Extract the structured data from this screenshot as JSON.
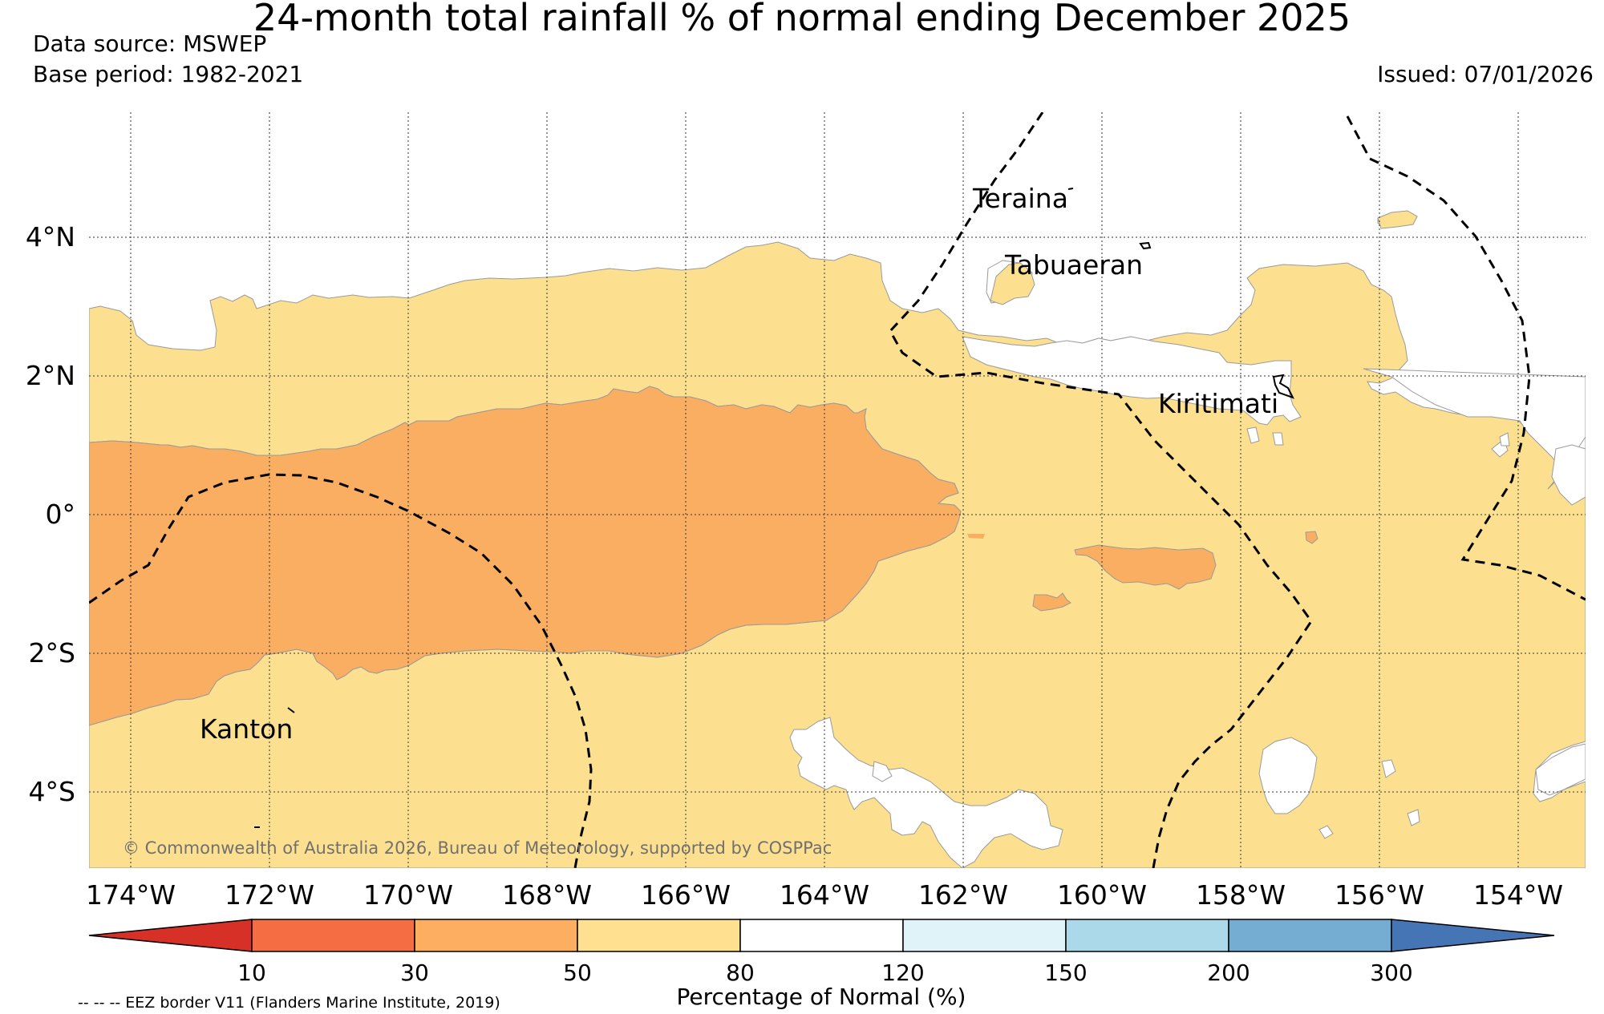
{
  "header": {
    "title": "24-month total rainfall % of normal ending December 2025",
    "data_source": "Data source: MSWEP",
    "base_period": "Base period: 1982-2021",
    "issued": "Issued: 07/01/2026"
  },
  "map": {
    "lat_labels": [
      "4°N",
      "2°N",
      "0°",
      "2°S",
      "4°S"
    ],
    "lon_labels": [
      "174°W",
      "172°W",
      "170°W",
      "168°W",
      "166°W",
      "164°W",
      "162°W",
      "160°W",
      "158°W",
      "156°W",
      "154°W"
    ],
    "places": [
      "Teraina",
      "Tabuaeran",
      "Kiritimati",
      "Kanton"
    ],
    "copyright": "© Commonwealth of Australia 2026, Bureau of Meteorology, supported by COSPPac",
    "categories": [
      {
        "range": "30-50",
        "color": "#f9ae62"
      },
      {
        "range": "50-80",
        "color": "#fce08f"
      },
      {
        "range": "80-120",
        "color": "#ffffff"
      }
    ]
  },
  "legend": {
    "ticks": [
      "10",
      "30",
      "50",
      "80",
      "120",
      "150",
      "200",
      "300"
    ],
    "colors": [
      "#d73027",
      "#f46d43",
      "#fdae61",
      "#fee090",
      "#ffffff",
      "#e0f3f8",
      "#abd9e9",
      "#74add1",
      "#4575b4"
    ],
    "label": "Percentage of Normal (%)"
  },
  "footnote": "-- -- -- EEZ border V11 (Flanders Marine Institute, 2019)"
}
